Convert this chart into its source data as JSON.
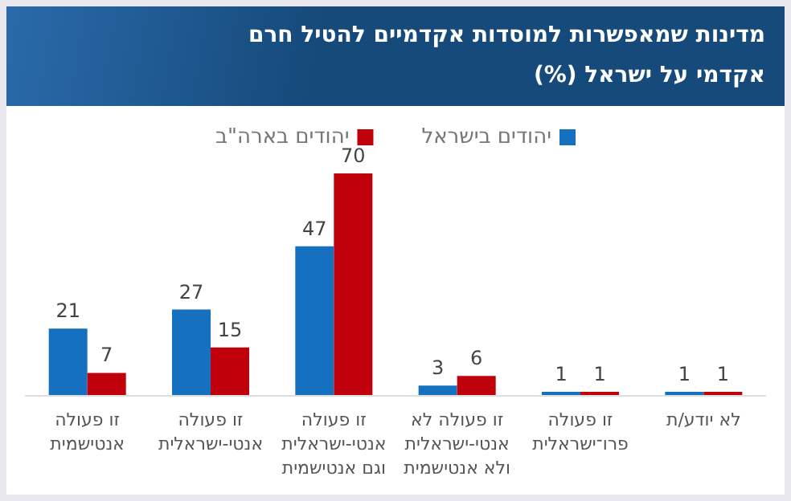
{
  "chart_data": {
    "type": "bar",
    "title": "מדינות שמאפשרות למוסדות אקדמיים להטיל חרם אקדמי על ישראל (%)",
    "categories": [
      "זו פעולה אנטישמית",
      "זו פעולה אנטי-ישראלית",
      "זו פעולה אנטי-ישראלית וגם אנטישמית",
      "זו פעולה לא אנטי-ישראלית ולא אנטישמית",
      "זו פעולה פרו־ישראלית",
      "לא יודע/ת"
    ],
    "series": [
      {
        "name": "יהודים בישראל",
        "color": "#1570c0",
        "values": [
          21,
          27,
          47,
          3,
          1,
          1
        ]
      },
      {
        "name": "יהודים בארה\"ב",
        "color": "#c0000b",
        "values": [
          7,
          15,
          70,
          6,
          1,
          1
        ]
      }
    ],
    "data_labels": true,
    "legend": "top"
  }
}
